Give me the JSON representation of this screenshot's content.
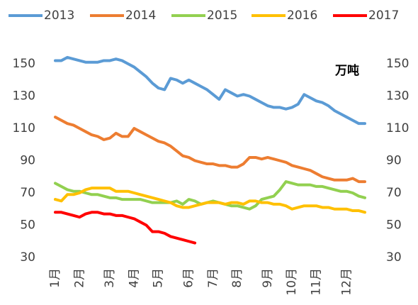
{
  "chart_data": {
    "type": "line",
    "annotation": "万吨",
    "categories": [
      "1月",
      null,
      null,
      null,
      "2月",
      null,
      null,
      null,
      null,
      "3月",
      null,
      null,
      null,
      "4月",
      null,
      null,
      null,
      "5月",
      null,
      null,
      null,
      null,
      "6月",
      null,
      null,
      null,
      "7月",
      null,
      null,
      null,
      "8月",
      null,
      null,
      null,
      null,
      "9月",
      null,
      null,
      null,
      "10月",
      null,
      null,
      null,
      "11月",
      null,
      null,
      null,
      null,
      "12月",
      null,
      null,
      null
    ],
    "series": [
      {
        "name": "2013",
        "color": "#5b9bd5",
        "values": [
          152,
          152,
          154,
          153,
          152,
          151,
          151,
          151,
          152,
          152,
          153,
          152,
          150,
          148,
          145,
          142,
          138,
          135,
          134,
          141,
          140,
          138,
          140,
          138,
          136,
          134,
          131,
          128,
          134,
          132,
          130,
          131,
          130,
          128,
          126,
          124,
          123,
          123,
          122,
          123,
          125,
          131,
          129,
          127,
          126,
          124,
          121,
          119,
          117,
          115,
          113,
          113
        ]
      },
      {
        "name": "2014",
        "color": "#ed7d31",
        "values": [
          117,
          115,
          113,
          112,
          110,
          108,
          106,
          105,
          103,
          104,
          107,
          105,
          105,
          110,
          108,
          106,
          104,
          102,
          101,
          99,
          96,
          93,
          92,
          90,
          89,
          88,
          88,
          87,
          87,
          86,
          86,
          88,
          92,
          92,
          91,
          92,
          91,
          90,
          89,
          87,
          86,
          85,
          84,
          82,
          80,
          79,
          78,
          78,
          78,
          79,
          77,
          77
        ]
      },
      {
        "name": "2015",
        "color": "#92d050",
        "values": [
          76,
          74,
          72,
          71,
          71,
          70,
          69,
          69,
          68,
          67,
          67,
          66,
          66,
          66,
          66,
          65,
          64,
          64,
          64,
          64,
          65,
          63,
          66,
          65,
          63,
          64,
          65,
          64,
          63,
          62,
          62,
          61,
          60,
          62,
          66,
          67,
          68,
          72,
          77,
          76,
          75,
          75,
          75,
          74,
          74,
          73,
          72,
          71,
          71,
          70,
          68,
          67
        ]
      },
      {
        "name": "2016",
        "color": "#ffc000",
        "values": [
          66,
          65,
          69,
          69,
          70,
          72,
          73,
          73,
          73,
          73,
          71,
          71,
          71,
          70,
          69,
          68,
          67,
          66,
          65,
          64,
          62,
          61,
          61,
          62,
          63,
          64,
          64,
          64,
          63,
          64,
          64,
          63,
          65,
          65,
          64,
          64,
          63,
          63,
          62,
          60,
          61,
          62,
          62,
          62,
          61,
          61,
          60,
          60,
          60,
          59,
          59,
          58
        ]
      },
      {
        "name": "2017",
        "color": "#ff0000",
        "values": [
          58,
          58,
          57,
          56,
          55,
          57,
          58,
          58,
          57,
          57,
          56,
          56,
          55,
          54,
          52,
          50,
          46,
          46,
          45,
          43,
          42,
          41,
          40,
          39,
          null,
          null,
          null,
          null,
          null,
          null,
          null,
          null,
          null,
          null,
          null,
          null,
          null,
          null,
          null,
          null,
          null,
          null,
          null,
          null,
          null,
          null,
          null,
          null,
          null,
          null,
          null,
          null
        ]
      }
    ],
    "ylim": [
      30,
      160
    ],
    "yticks": [
      30,
      50,
      70,
      90,
      110,
      130,
      150
    ],
    "y2lim": [
      30,
      160
    ],
    "y2ticks": [
      30,
      50,
      70,
      90,
      110,
      130,
      150
    ]
  }
}
